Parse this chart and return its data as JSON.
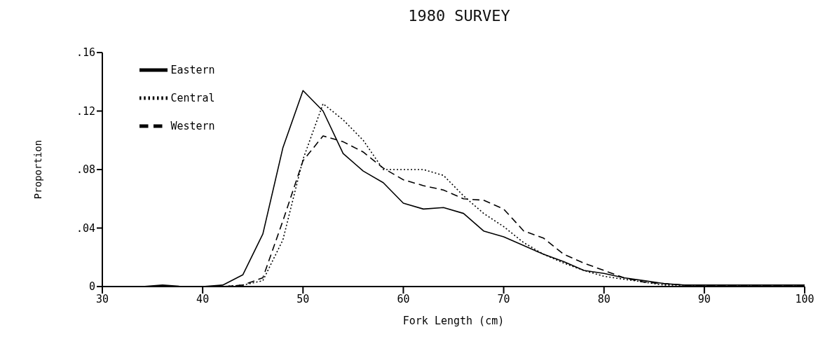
{
  "chart_data": {
    "type": "line",
    "title": "1980 SURVEY",
    "xlabel": "Fork Length (cm)",
    "ylabel": "Proportion",
    "x": [
      30,
      32,
      34,
      36,
      38,
      40,
      42,
      44,
      46,
      48,
      50,
      52,
      54,
      56,
      58,
      60,
      62,
      64,
      66,
      68,
      70,
      72,
      74,
      76,
      78,
      80,
      82,
      84,
      86,
      88,
      90,
      92,
      94,
      96,
      98,
      100
    ],
    "series": [
      {
        "name": "Eastern",
        "color": "#000000",
        "line_style": "solid",
        "values": [
          0,
          0,
          0,
          0.001,
          0,
          0,
          0.001,
          0.008,
          0.036,
          0.095,
          0.134,
          0.12,
          0.091,
          0.079,
          0.071,
          0.057,
          0.053,
          0.054,
          0.05,
          0.038,
          0.034,
          0.028,
          0.022,
          0.017,
          0.011,
          0.009,
          0.006,
          0.004,
          0.002,
          0.001,
          0.001,
          0.001,
          0.001,
          0.001,
          0.001,
          0.001
        ]
      },
      {
        "name": "Central",
        "color": "#000000",
        "line_style": "dotted",
        "values": [
          0,
          0,
          0,
          0,
          0,
          0,
          0,
          0.001,
          0.004,
          0.032,
          0.087,
          0.125,
          0.114,
          0.1,
          0.08,
          0.08,
          0.08,
          0.076,
          0.062,
          0.05,
          0.041,
          0.03,
          0.022,
          0.016,
          0.011,
          0.007,
          0.005,
          0.003,
          0.001,
          0.001,
          0.001,
          0.001,
          0.001,
          0.001,
          0.001,
          0.001
        ]
      },
      {
        "name": "Western",
        "color": "#000000",
        "line_style": "dashed",
        "values": [
          0,
          0,
          0,
          0,
          0,
          0,
          0,
          0.001,
          0.006,
          0.045,
          0.086,
          0.103,
          0.099,
          0.092,
          0.081,
          0.073,
          0.069,
          0.066,
          0.06,
          0.059,
          0.053,
          0.038,
          0.033,
          0.022,
          0.016,
          0.011,
          0.006,
          0.003,
          0.002,
          0.001,
          0.001,
          0.001,
          0.001,
          0.001,
          0.001,
          0.001
        ]
      }
    ],
    "xlim": [
      30,
      100
    ],
    "xticks": [
      30,
      40,
      50,
      60,
      70,
      80,
      90,
      100
    ],
    "ylim": [
      0,
      0.16
    ],
    "yticks": [
      {
        "value": 0,
        "label": "0"
      },
      {
        "value": 0.04,
        "label": ".04"
      },
      {
        "value": 0.08,
        "label": ".08"
      },
      {
        "value": 0.12,
        "label": ".12"
      },
      {
        "value": 0.16,
        "label": ".16"
      }
    ],
    "legend": "top left",
    "grid": false,
    "marker": "none"
  }
}
